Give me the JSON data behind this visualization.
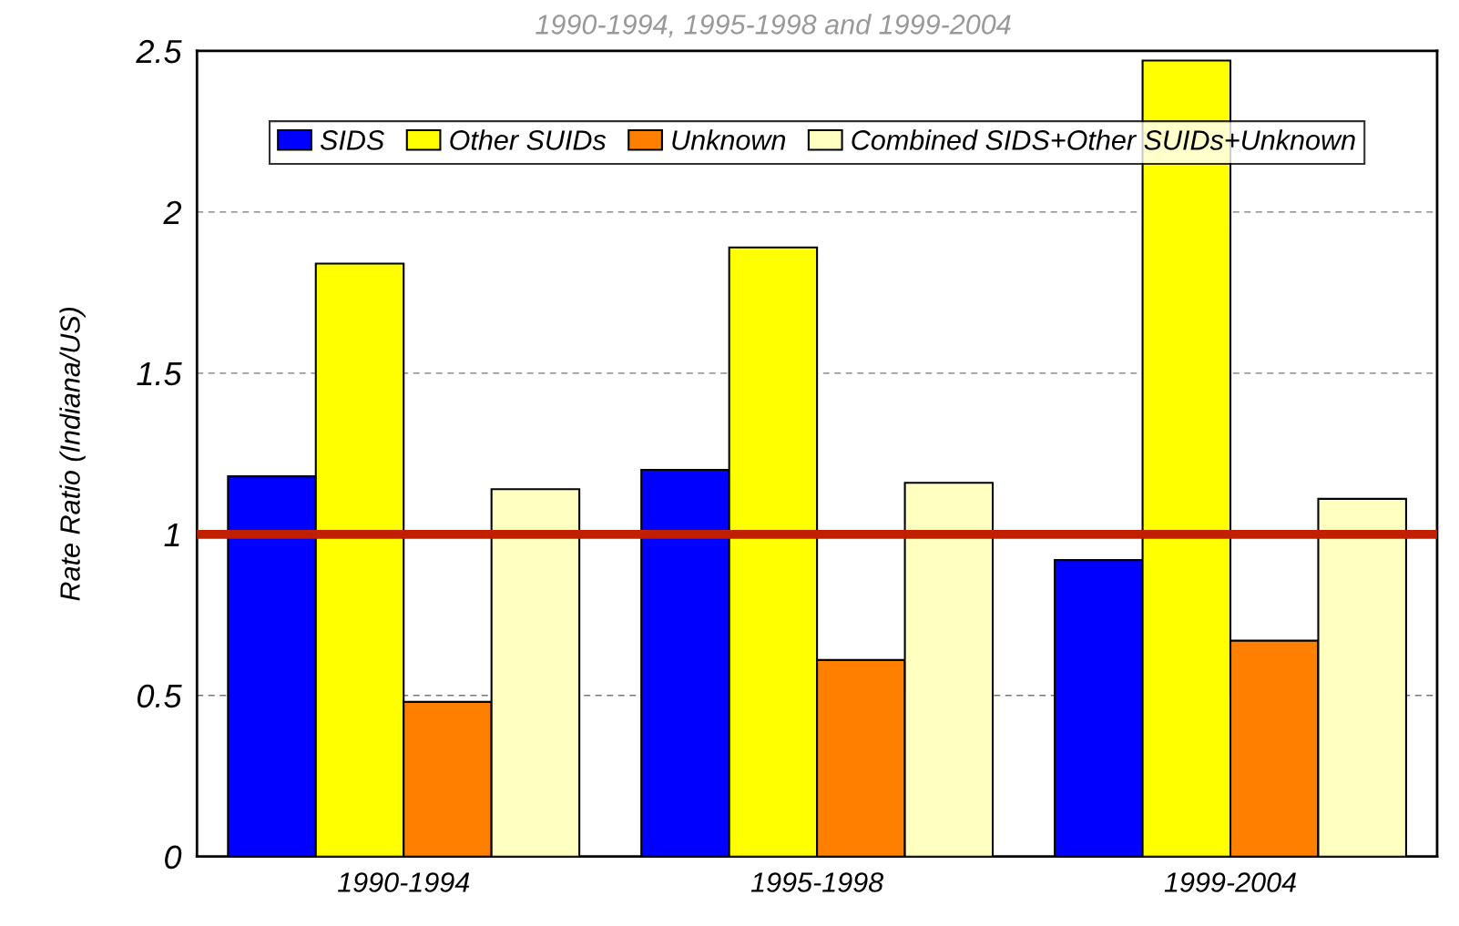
{
  "chart_data": {
    "type": "bar",
    "subtitle": "1990-1994, 1995-1998 and 1999-2004",
    "ylabel": "Rate Ratio (Indiana/US)",
    "categories": [
      "1990-1994",
      "1995-1998",
      "1999-2004"
    ],
    "series": [
      {
        "name": "SIDS",
        "color": "#0000ff",
        "values": [
          1.18,
          1.2,
          0.92
        ]
      },
      {
        "name": "Other SUIDs",
        "color": "#ffff00",
        "values": [
          1.84,
          1.89,
          2.47
        ]
      },
      {
        "name": "Unknown",
        "color": "#ff8000",
        "values": [
          0.48,
          0.61,
          0.67
        ]
      },
      {
        "name": "Combined SIDS+Other SUIDs+Unknown",
        "color": "#ffffc0",
        "values": [
          1.14,
          1.16,
          1.11
        ]
      }
    ],
    "ylim": [
      0,
      2.5
    ],
    "yticks": [
      0,
      0.5,
      1,
      1.5,
      2,
      2.5
    ],
    "grid": "y",
    "legend": "top",
    "ref_lines": [
      {
        "axis": "y",
        "value": 1,
        "color": "#c02000"
      }
    ]
  }
}
